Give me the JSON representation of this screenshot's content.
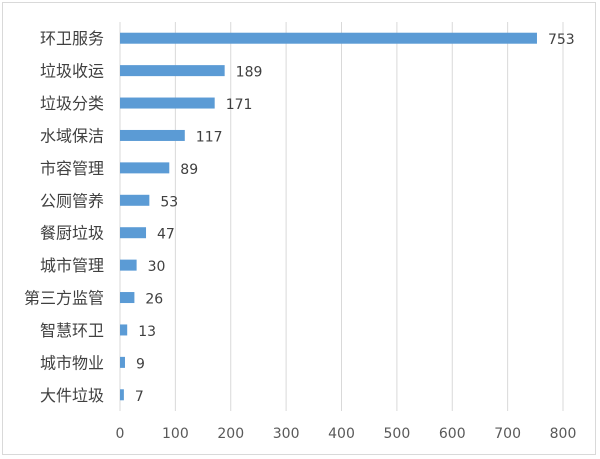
{
  "chart_data": {
    "type": "bar",
    "orientation": "horizontal",
    "categories": [
      "环卫服务",
      "垃圾收运",
      "垃圾分类",
      "水域保洁",
      "市容管理",
      "公厕管养",
      "餐厨垃圾",
      "城市管理",
      "第三方监管",
      "智慧环卫",
      "城市物业",
      "大件垃圾"
    ],
    "values": [
      753,
      189,
      171,
      117,
      89,
      53,
      47,
      30,
      26,
      13,
      9,
      7
    ],
    "xlim": [
      0,
      800
    ],
    "xticks": [
      0,
      100,
      200,
      300,
      400,
      500,
      600,
      700,
      800
    ],
    "grid": "vertical",
    "data_labels": true,
    "colors": {
      "bar": "#5b9bd5",
      "grid": "#d9d9d9",
      "text": "#404040"
    }
  }
}
